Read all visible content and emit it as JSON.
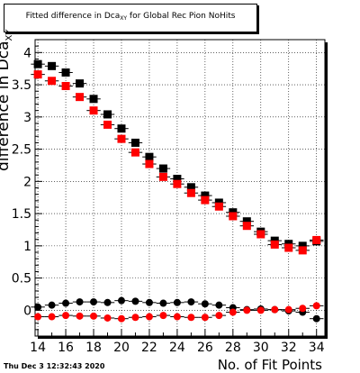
{
  "title": {
    "pre": "Fitted difference in Dca",
    "sub": "XY",
    "post": " for Global Rec Pion NoHits"
  },
  "timestamp": "Thu Dec  3 12:32:43 2020",
  "chart_data": {
    "type": "scatter",
    "xlabel": "No. of Fit Points",
    "ylabel_main": "difference in Dca",
    "ylabel_sub": "XY",
    "xlim": [
      13.8,
      34.6
    ],
    "ylim": [
      -0.4,
      4.2
    ],
    "xticks": [
      14,
      16,
      18,
      20,
      22,
      24,
      26,
      28,
      30,
      32,
      34
    ],
    "xtick_labels": [
      "14",
      "16",
      "18",
      "20",
      "22",
      "24",
      "26",
      "28",
      "30",
      "32",
      "34"
    ],
    "yticks": [
      0,
      0.5,
      1,
      1.5,
      2,
      2.5,
      3,
      3.5,
      4
    ],
    "ytick_labels": [
      "0",
      "0.5",
      "1",
      "1.5",
      "2",
      "2.5",
      "3",
      "3.5",
      "4"
    ],
    "grid": true,
    "x": [
      14,
      15,
      16,
      17,
      18,
      19,
      20,
      21,
      22,
      23,
      24,
      25,
      26,
      27,
      28,
      29,
      30,
      31,
      32,
      33,
      34
    ],
    "series": [
      {
        "marker": "square",
        "color": "#000000",
        "values": [
          3.82,
          3.79,
          3.69,
          3.52,
          3.28,
          3.04,
          2.82,
          2.6,
          2.38,
          2.2,
          2.04,
          1.91,
          1.78,
          1.67,
          1.52,
          1.38,
          1.22,
          1.08,
          1.03,
          1.0,
          1.07
        ]
      },
      {
        "marker": "square",
        "color": "#ff0000",
        "values": [
          3.66,
          3.56,
          3.48,
          3.31,
          3.1,
          2.88,
          2.66,
          2.45,
          2.27,
          2.07,
          1.96,
          1.82,
          1.71,
          1.61,
          1.46,
          1.31,
          1.18,
          1.02,
          0.97,
          0.93,
          1.09
        ]
      },
      {
        "marker": "circle",
        "color": "#000000",
        "values": [
          0.05,
          0.08,
          0.11,
          0.13,
          0.13,
          0.12,
          0.15,
          0.14,
          0.12,
          0.11,
          0.12,
          0.13,
          0.1,
          0.08,
          0.04,
          0.01,
          0.02,
          0.01,
          -0.01,
          -0.03,
          -0.13
        ]
      },
      {
        "marker": "circle",
        "color": "#ff0000",
        "values": [
          -0.1,
          -0.1,
          -0.08,
          -0.09,
          -0.09,
          -0.12,
          -0.13,
          -0.11,
          -0.1,
          -0.08,
          -0.1,
          -0.11,
          -0.11,
          -0.08,
          -0.03,
          0.0,
          0.0,
          0.01,
          0.01,
          0.03,
          0.07
        ]
      }
    ]
  }
}
